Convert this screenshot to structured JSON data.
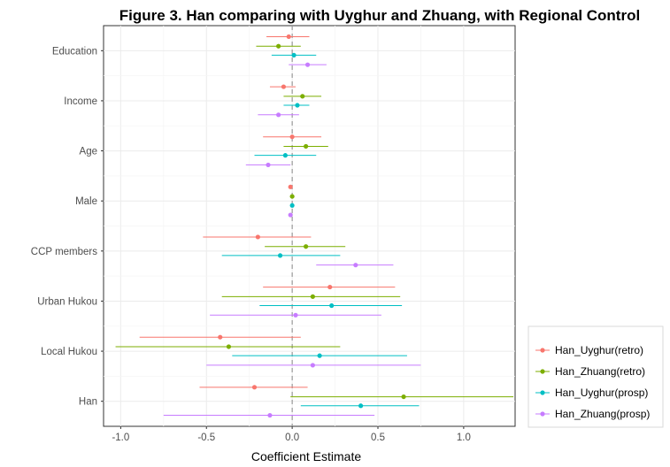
{
  "chart_data": {
    "type": "scatter",
    "title": "Figure 3. Han comparing with Uyghur and Zhuang, with Regional Control",
    "xlabel": "Coefficient Estimate",
    "ylabel": "",
    "xlim": [
      -1.1,
      1.3
    ],
    "x_ticks": [
      -1.0,
      -0.5,
      0.0,
      0.5,
      1.0
    ],
    "x_tick_labels": [
      "-1.0",
      "-0.5",
      "0.0",
      "0.5",
      "1.0"
    ],
    "reference_line_x": 0,
    "grid": true,
    "legend_position": "bottom-right",
    "categories": [
      "Education",
      "Income",
      "Age",
      "Male",
      "CCP members",
      "Urban Hukou",
      "Local Hukou",
      "Han"
    ],
    "series": [
      {
        "name": "Han_Uyghur(retro)",
        "color": "#F8766D",
        "estimates": [
          -0.02,
          -0.05,
          0.0,
          -0.01,
          -0.2,
          0.22,
          -0.42,
          -0.22
        ],
        "lower": [
          -0.15,
          -0.13,
          -0.17,
          -0.02,
          -0.52,
          -0.17,
          -0.89,
          -0.54
        ],
        "upper": [
          0.1,
          0.02,
          0.17,
          0.0,
          0.11,
          0.6,
          0.05,
          0.09
        ]
      },
      {
        "name": "Han_Zhuang(retro)",
        "color": "#7CAE00",
        "estimates": [
          -0.08,
          0.06,
          0.08,
          0.0,
          0.08,
          0.12,
          -0.37,
          0.65
        ],
        "lower": [
          -0.21,
          -0.05,
          -0.05,
          -0.01,
          -0.16,
          -0.41,
          -1.03,
          -0.01
        ],
        "upper": [
          0.05,
          0.17,
          0.21,
          0.01,
          0.31,
          0.63,
          0.28,
          1.29
        ]
      },
      {
        "name": "Han_Uyghur(prosp)",
        "color": "#00BFC4",
        "estimates": [
          0.01,
          0.03,
          -0.04,
          0.0,
          -0.07,
          0.23,
          0.16,
          0.4
        ],
        "lower": [
          -0.12,
          -0.05,
          -0.22,
          -0.01,
          -0.41,
          -0.19,
          -0.35,
          0.05
        ],
        "upper": [
          0.14,
          0.1,
          0.14,
          0.01,
          0.28,
          0.64,
          0.67,
          0.74
        ]
      },
      {
        "name": "Han_Zhuang(prosp)",
        "color": "#C77CFF",
        "estimates": [
          0.09,
          -0.08,
          -0.14,
          -0.01,
          0.37,
          0.02,
          0.12,
          -0.13
        ],
        "lower": [
          -0.02,
          -0.2,
          -0.27,
          -0.02,
          0.14,
          -0.48,
          -0.5,
          -0.75
        ],
        "upper": [
          0.2,
          0.04,
          -0.01,
          0.0,
          0.59,
          0.52,
          0.75,
          0.48
        ]
      }
    ]
  }
}
